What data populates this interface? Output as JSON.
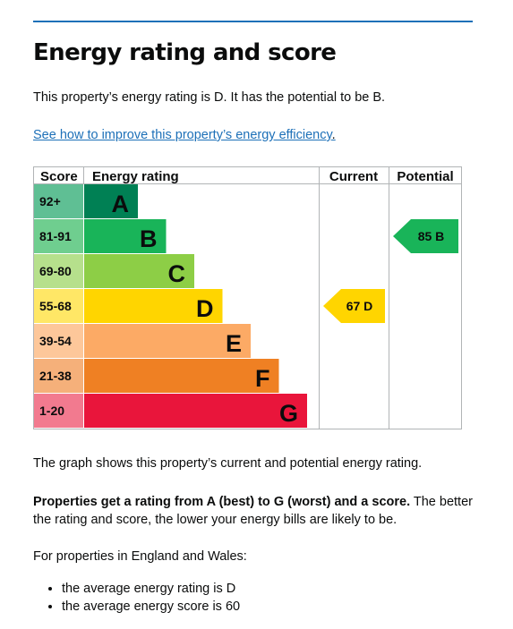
{
  "heading": "Energy rating and score",
  "intro": "This property’s energy rating is D. It has the potential to be B.",
  "improve_link": "See how to improve this property’s energy efficiency",
  "improve_link_suffix": ".",
  "chart_data": {
    "type": "bar",
    "headers": {
      "score": "Score",
      "rating": "Energy rating",
      "current": "Current",
      "potential": "Potential"
    },
    "bands": [
      {
        "range": "92+",
        "letter": "A",
        "color": "#008054",
        "light": "#5fbf94"
      },
      {
        "range": "81-91",
        "letter": "B",
        "color": "#19b459",
        "light": "#6fce8f"
      },
      {
        "range": "69-80",
        "letter": "C",
        "color": "#8dce46",
        "light": "#b6e08c"
      },
      {
        "range": "55-68",
        "letter": "D",
        "color": "#ffd500",
        "light": "#ffe766"
      },
      {
        "range": "39-54",
        "letter": "E",
        "color": "#fcaa65",
        "light": "#fdc79a"
      },
      {
        "range": "21-38",
        "letter": "F",
        "color": "#ef8023",
        "light": "#f5b07a"
      },
      {
        "range": "1-20",
        "letter": "G",
        "color": "#e9153b",
        "light": "#f27a8f"
      }
    ],
    "current": {
      "score": 67,
      "letter": "D",
      "label": "67  D",
      "color": "#ffd500"
    },
    "potential": {
      "score": 85,
      "letter": "B",
      "label": "85  B",
      "color": "#19b459"
    }
  },
  "graph_note": "The graph shows this property’s current and potential energy rating.",
  "rating_note_bold": "Properties get a rating from A (best) to G (worst) and a score.",
  "rating_note_rest": " The better the rating and score, the lower your energy bills are likely to be.",
  "england_note": "For properties in England and Wales:",
  "averages": [
    "the average energy rating is D",
    "the average energy score is 60"
  ]
}
